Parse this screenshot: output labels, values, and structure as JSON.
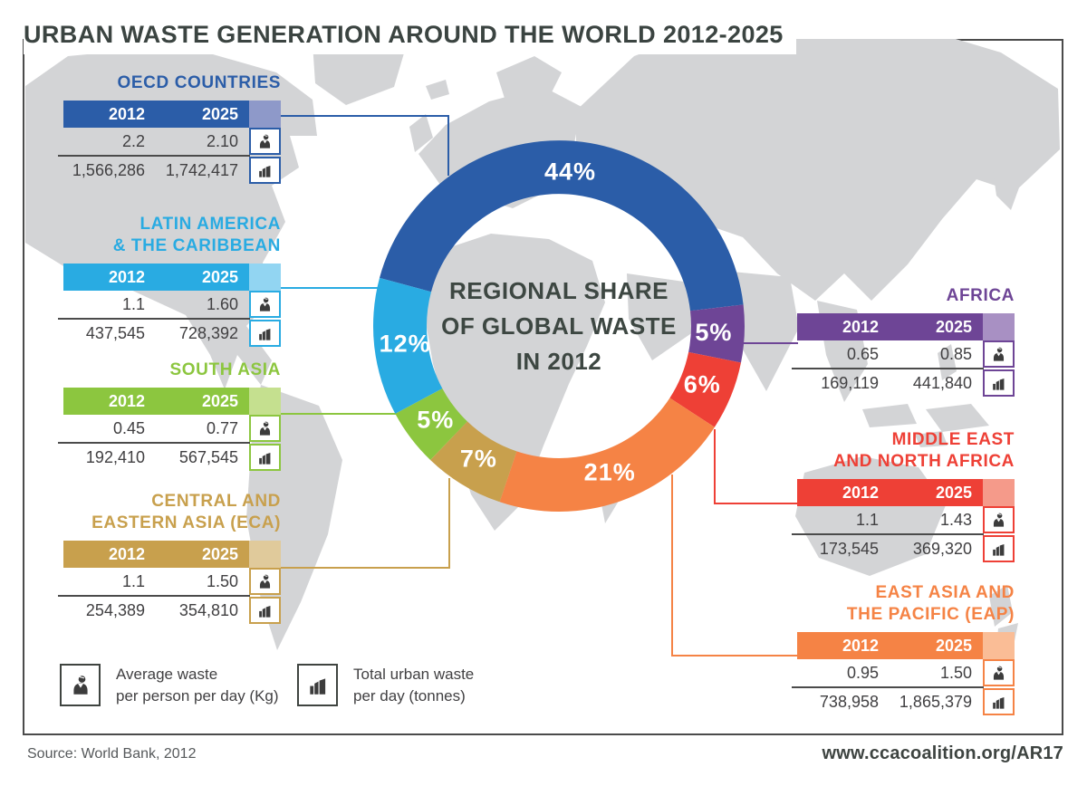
{
  "title": "URBAN WASTE GENERATION AROUND THE WORLD 2012-2025",
  "table_headers": {
    "y2012": "2012",
    "y2025": "2025"
  },
  "donut_center_text": "REGIONAL SHARE\nOF GLOBAL WASTE\nIN 2012",
  "regions": [
    {
      "id": "oecd",
      "title": "OECD COUNTRIES",
      "color": "#2b5da8",
      "tint": "#8e99c9",
      "pct": 44,
      "pct_label": "44%",
      "per_person_2012": "2.2",
      "per_person_2025": "2.10",
      "total_2012": "1,566,286",
      "total_2025": "1,742,417"
    },
    {
      "id": "latam",
      "title": "LATIN AMERICA\n& THE CARIBBEAN",
      "color": "#29abe2",
      "tint": "#92d5f2",
      "pct": 12,
      "pct_label": "12%",
      "per_person_2012": "1.1",
      "per_person_2025": "1.60",
      "total_2012": "437,545",
      "total_2025": "728,392"
    },
    {
      "id": "southasia",
      "title": "SOUTH ASIA",
      "color": "#8cc63f",
      "tint": "#c5e08f",
      "pct": 5,
      "pct_label": "5%",
      "per_person_2012": "0.45",
      "per_person_2025": "0.77",
      "total_2012": "192,410",
      "total_2025": "567,545"
    },
    {
      "id": "eca",
      "title": "CENTRAL AND\nEASTERN ASIA (ECA)",
      "color": "#c8a04d",
      "tint": "#e0ca9b",
      "pct": 7,
      "pct_label": "7%",
      "per_person_2012": "1.1",
      "per_person_2025": "1.50",
      "total_2012": "254,389",
      "total_2025": "354,810"
    },
    {
      "id": "africa",
      "title": "AFRICA",
      "color": "#6e4596",
      "tint": "#a890c3",
      "pct": 5,
      "pct_label": "5%",
      "per_person_2012": "0.65",
      "per_person_2025": "0.85",
      "total_2012": "169,119",
      "total_2025": "441,840"
    },
    {
      "id": "mena",
      "title": "MIDDLE EAST\nAND NORTH AFRICA",
      "color": "#ee4036",
      "tint": "#f59a8a",
      "pct": 6,
      "pct_label": "6%",
      "per_person_2012": "1.1",
      "per_person_2025": "1.43",
      "total_2012": "173,545",
      "total_2025": "369,320"
    },
    {
      "id": "eap",
      "title": "EAST ASIA AND\nTHE PACIFIC (EAP)",
      "color": "#f58345",
      "tint": "#fabd96",
      "pct": 21,
      "pct_label": "21%",
      "per_person_2012": "0.95",
      "per_person_2025": "1.50",
      "total_2012": "738,958",
      "total_2025": "1,865,379"
    }
  ],
  "legend": {
    "person": "Average waste\nper person per day (Kg)",
    "building": "Total urban waste\nper day (tonnes)"
  },
  "footer": {
    "source": "Source: World Bank, 2012",
    "url": "www.ccacoalition.org/AR17"
  },
  "chart_data": {
    "type": "pie",
    "subtype": "donut",
    "title": "REGIONAL SHARE OF GLOBAL WASTE IN 2012",
    "unit": "%",
    "categories": [
      "OECD Countries",
      "Africa",
      "Middle East and North Africa",
      "East Asia and the Pacific (EAP)",
      "Central and Eastern Asia (ECA)",
      "South Asia",
      "Latin America & the Caribbean"
    ],
    "values": [
      44,
      5,
      6,
      21,
      7,
      5,
      12
    ],
    "colors": [
      "#2b5da8",
      "#6e4596",
      "#ee4036",
      "#f58345",
      "#c8a04d",
      "#8cc63f",
      "#29abe2"
    ],
    "legend_position": "callout-tables",
    "regional_tables": [
      {
        "region": "OECD Countries",
        "avg_kg_person_day_2012": 2.2,
        "avg_kg_person_day_2025": 2.1,
        "total_tonnes_day_2012": 1566286,
        "total_tonnes_day_2025": 1742417
      },
      {
        "region": "Latin America & the Caribbean",
        "avg_kg_person_day_2012": 1.1,
        "avg_kg_person_day_2025": 1.6,
        "total_tonnes_day_2012": 437545,
        "total_tonnes_day_2025": 728392
      },
      {
        "region": "South Asia",
        "avg_kg_person_day_2012": 0.45,
        "avg_kg_person_day_2025": 0.77,
        "total_tonnes_day_2012": 192410,
        "total_tonnes_day_2025": 567545
      },
      {
        "region": "Central and Eastern Asia (ECA)",
        "avg_kg_person_day_2012": 1.1,
        "avg_kg_person_day_2025": 1.5,
        "total_tonnes_day_2012": 254389,
        "total_tonnes_day_2025": 354810
      },
      {
        "region": "Africa",
        "avg_kg_person_day_2012": 0.65,
        "avg_kg_person_day_2025": 0.85,
        "total_tonnes_day_2012": 169119,
        "total_tonnes_day_2025": 441840
      },
      {
        "region": "Middle East and North Africa",
        "avg_kg_person_day_2012": 1.1,
        "avg_kg_person_day_2025": 1.43,
        "total_tonnes_day_2012": 173545,
        "total_tonnes_day_2025": 369320
      },
      {
        "region": "East Asia and the Pacific (EAP)",
        "avg_kg_person_day_2012": 0.95,
        "avg_kg_person_day_2025": 1.5,
        "total_tonnes_day_2012": 738958,
        "total_tonnes_day_2025": 1865379
      }
    ]
  }
}
